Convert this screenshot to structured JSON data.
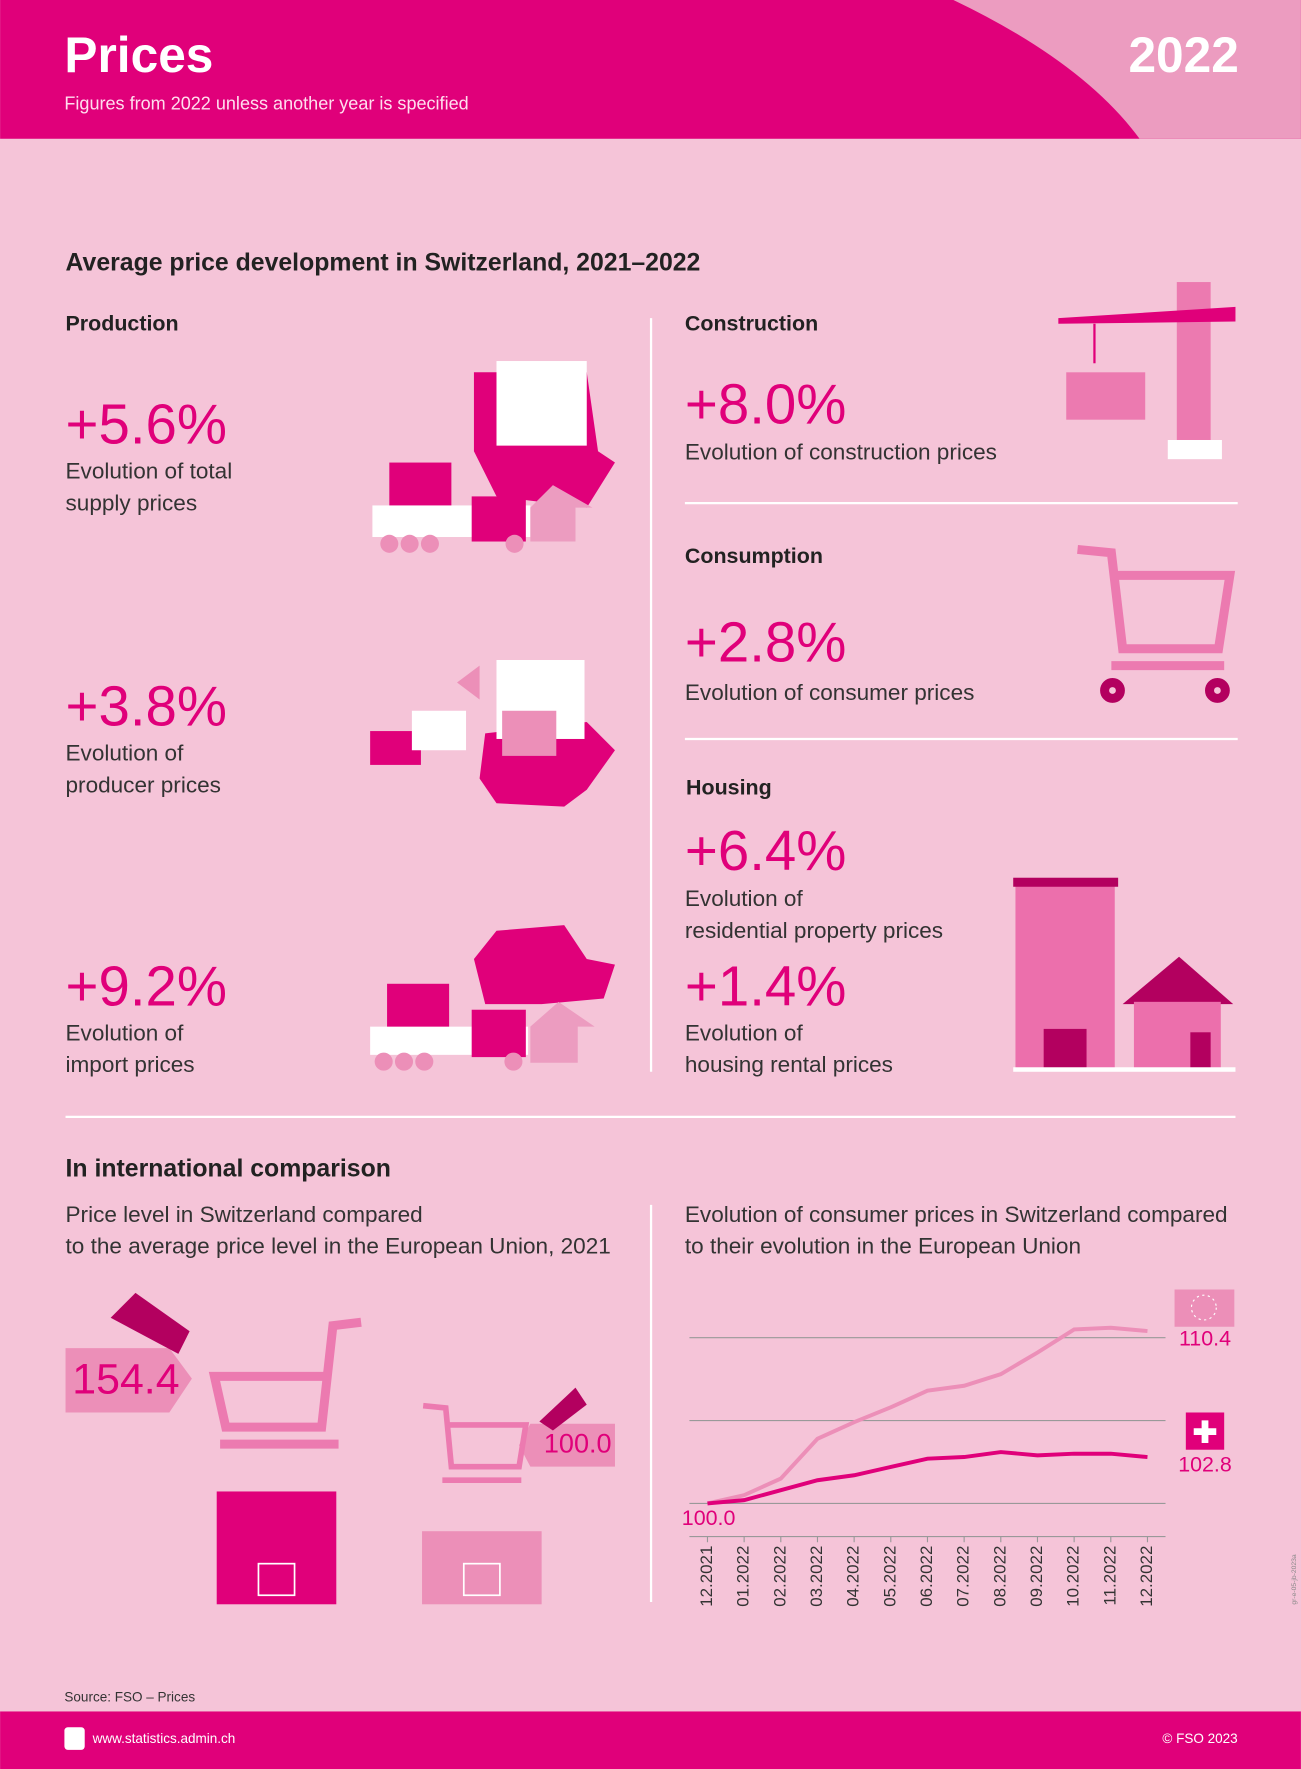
{
  "header": {
    "title": "Prices",
    "subtitle": "Figures from 2022 unless another year is specified",
    "year": "2022"
  },
  "section1": {
    "title": "Average price development in Switzerland, 2021–2022",
    "production": {
      "heading": "Production",
      "items": [
        {
          "value": "+5.6%",
          "label_lines": [
            "Evolution of total",
            "supply prices"
          ]
        },
        {
          "value": "+3.8%",
          "label_lines": [
            "Evolution of",
            "producer prices"
          ]
        },
        {
          "value": "+9.2%",
          "label_lines": [
            "Evolution of",
            "import prices"
          ]
        }
      ]
    },
    "construction": {
      "heading": "Construction",
      "value": "+8.0%",
      "label": "Evolution of construction prices"
    },
    "consumption": {
      "heading": "Consumption",
      "value": "+2.8%",
      "label": "Evolution of consumer prices"
    },
    "housing": {
      "heading": "Housing",
      "items": [
        {
          "value": "+6.4%",
          "label_lines": [
            "Evolution of",
            "residential property prices"
          ]
        },
        {
          "value": "+1.4%",
          "label_lines": [
            "Evolution of",
            "housing rental prices"
          ]
        }
      ]
    }
  },
  "section2": {
    "title": "In international comparison",
    "left_caption": [
      "Price level in Switzerland compared",
      "to the average price level in the European Union, 2021"
    ],
    "price_level": {
      "values": [
        154.4,
        100.0
      ],
      "value_labels": [
        "154.4",
        "100.0"
      ],
      "colors": [
        "#e0007a",
        "#ec8fb8"
      ]
    },
    "right_caption": [
      "Evolution of consumer prices in Switzerland compared",
      "to their evolution in the European Union"
    ]
  },
  "chart_data": {
    "type": "line",
    "x": [
      "12.2021",
      "01.2022",
      "02.2022",
      "03.2022",
      "04.2022",
      "05.2022",
      "06.2022",
      "07.2022",
      "08.2022",
      "09.2022",
      "10.2022",
      "11.2022",
      "12.2022"
    ],
    "series": [
      {
        "color": "#ec8fb8",
        "values": [
          100.0,
          100.5,
          101.5,
          103.9,
          104.9,
          105.8,
          106.8,
          107.1,
          107.8,
          109.1,
          110.5,
          110.6,
          110.4
        ],
        "value_labels": [
          null,
          null,
          null,
          null,
          null,
          null,
          null,
          null,
          null,
          null,
          null,
          null,
          "110.4"
        ]
      },
      {
        "color": "#e0007a",
        "values": [
          100.0,
          100.2,
          100.8,
          101.4,
          101.7,
          102.2,
          102.7,
          102.8,
          103.1,
          102.9,
          103.0,
          103.0,
          102.8
        ],
        "value_labels": [
          "100.0",
          null,
          null,
          null,
          null,
          null,
          null,
          null,
          null,
          null,
          null,
          null,
          "102.8"
        ]
      }
    ],
    "ylim": [
      98,
      111
    ],
    "yticks": [
      100,
      105,
      110
    ],
    "grid": true
  },
  "footer": {
    "source": "Source: FSO – Prices",
    "url": "www.statistics.admin.ch",
    "copyright": "© FSO 2023",
    "code": "gr-e-05-jb-2023a"
  }
}
